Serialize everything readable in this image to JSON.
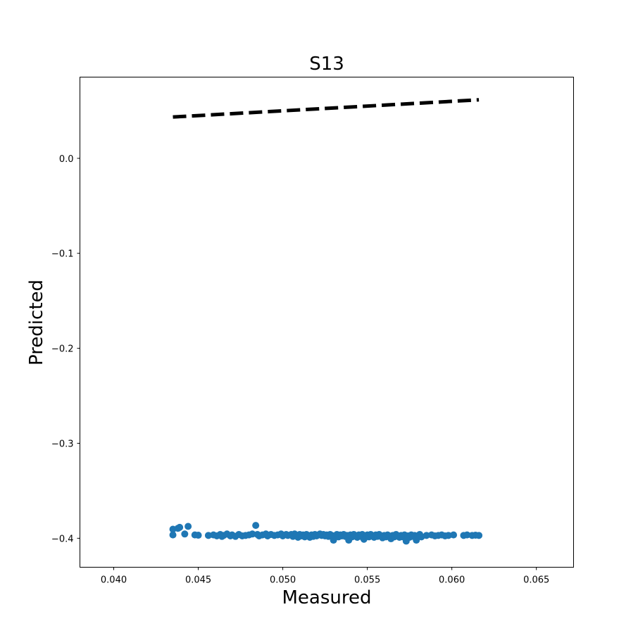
{
  "chart_data": {
    "type": "scatter",
    "title": "S13",
    "xlabel": "Measured",
    "ylabel": "Predicted",
    "xlim": [
      0.038,
      0.0672
    ],
    "ylim": [
      -0.4305,
      0.0855
    ],
    "xticks": [
      0.04,
      0.045,
      0.05,
      0.055,
      0.06,
      0.065
    ],
    "xtick_labels": [
      "0.040",
      "0.045",
      "0.050",
      "0.055",
      "0.060",
      "0.065"
    ],
    "yticks": [
      0.0,
      -0.1,
      -0.2,
      -0.3,
      -0.4
    ],
    "ytick_labels": [
      "0.0",
      "−0.1",
      "−0.2",
      "−0.3",
      "−0.4"
    ],
    "grid": false,
    "colors": {
      "points": "#1f77b4",
      "reference_line": "#000000"
    },
    "reference_line": {
      "x": [
        0.0435,
        0.0616
      ],
      "y": [
        0.0435,
        0.0616
      ],
      "style": "dashed"
    },
    "points": [
      {
        "x": 0.0435,
        "y": -0.3905
      },
      {
        "x": 0.0435,
        "y": -0.3965
      },
      {
        "x": 0.0438,
        "y": -0.3895
      },
      {
        "x": 0.0439,
        "y": -0.3885
      },
      {
        "x": 0.0442,
        "y": -0.3955
      },
      {
        "x": 0.0444,
        "y": -0.3875
      },
      {
        "x": 0.0448,
        "y": -0.3965
      },
      {
        "x": 0.045,
        "y": -0.3968
      },
      {
        "x": 0.0456,
        "y": -0.397
      },
      {
        "x": 0.0459,
        "y": -0.3965
      },
      {
        "x": 0.0461,
        "y": -0.3975
      },
      {
        "x": 0.0463,
        "y": -0.396
      },
      {
        "x": 0.0464,
        "y": -0.398
      },
      {
        "x": 0.0465,
        "y": -0.397
      },
      {
        "x": 0.0467,
        "y": -0.3955
      },
      {
        "x": 0.0469,
        "y": -0.3975
      },
      {
        "x": 0.047,
        "y": -0.3965
      },
      {
        "x": 0.0472,
        "y": -0.398
      },
      {
        "x": 0.0474,
        "y": -0.396
      },
      {
        "x": 0.0476,
        "y": -0.3975
      },
      {
        "x": 0.0478,
        "y": -0.397
      },
      {
        "x": 0.048,
        "y": -0.3965
      },
      {
        "x": 0.0482,
        "y": -0.3955
      },
      {
        "x": 0.0484,
        "y": -0.3865
      },
      {
        "x": 0.0485,
        "y": -0.396
      },
      {
        "x": 0.0486,
        "y": -0.3975
      },
      {
        "x": 0.0488,
        "y": -0.3965
      },
      {
        "x": 0.049,
        "y": -0.3955
      },
      {
        "x": 0.0491,
        "y": -0.3975
      },
      {
        "x": 0.0493,
        "y": -0.396
      },
      {
        "x": 0.0495,
        "y": -0.397
      },
      {
        "x": 0.0497,
        "y": -0.3965
      },
      {
        "x": 0.0499,
        "y": -0.3955
      },
      {
        "x": 0.05,
        "y": -0.3975
      },
      {
        "x": 0.0502,
        "y": -0.396
      },
      {
        "x": 0.0503,
        "y": -0.397
      },
      {
        "x": 0.0505,
        "y": -0.396
      },
      {
        "x": 0.0506,
        "y": -0.398
      },
      {
        "x": 0.0507,
        "y": -0.3955
      },
      {
        "x": 0.0508,
        "y": -0.397
      },
      {
        "x": 0.0509,
        "y": -0.399
      },
      {
        "x": 0.051,
        "y": -0.396
      },
      {
        "x": 0.0511,
        "y": -0.3975
      },
      {
        "x": 0.0512,
        "y": -0.3965
      },
      {
        "x": 0.0513,
        "y": -0.3985
      },
      {
        "x": 0.0514,
        "y": -0.396
      },
      {
        "x": 0.0515,
        "y": -0.3975
      },
      {
        "x": 0.0516,
        "y": -0.399
      },
      {
        "x": 0.0517,
        "y": -0.3965
      },
      {
        "x": 0.0518,
        "y": -0.398
      },
      {
        "x": 0.0519,
        "y": -0.396
      },
      {
        "x": 0.052,
        "y": -0.3975
      },
      {
        "x": 0.0521,
        "y": -0.3965
      },
      {
        "x": 0.0522,
        "y": -0.3955
      },
      {
        "x": 0.0523,
        "y": -0.397
      },
      {
        "x": 0.0524,
        "y": -0.396
      },
      {
        "x": 0.0525,
        "y": -0.3975
      },
      {
        "x": 0.0526,
        "y": -0.3965
      },
      {
        "x": 0.0527,
        "y": -0.398
      },
      {
        "x": 0.0528,
        "y": -0.396
      },
      {
        "x": 0.0529,
        "y": -0.397
      },
      {
        "x": 0.053,
        "y": -0.402
      },
      {
        "x": 0.0531,
        "y": -0.3975
      },
      {
        "x": 0.0532,
        "y": -0.396
      },
      {
        "x": 0.0533,
        "y": -0.3985
      },
      {
        "x": 0.0534,
        "y": -0.3965
      },
      {
        "x": 0.0535,
        "y": -0.3975
      },
      {
        "x": 0.0536,
        "y": -0.396
      },
      {
        "x": 0.0537,
        "y": -0.398
      },
      {
        "x": 0.0538,
        "y": -0.397
      },
      {
        "x": 0.0539,
        "y": -0.402
      },
      {
        "x": 0.054,
        "y": -0.3965
      },
      {
        "x": 0.0541,
        "y": -0.3985
      },
      {
        "x": 0.0542,
        "y": -0.396
      },
      {
        "x": 0.0543,
        "y": -0.3975
      },
      {
        "x": 0.0544,
        "y": -0.399
      },
      {
        "x": 0.0545,
        "y": -0.3965
      },
      {
        "x": 0.0546,
        "y": -0.398
      },
      {
        "x": 0.0547,
        "y": -0.396
      },
      {
        "x": 0.0548,
        "y": -0.401
      },
      {
        "x": 0.0549,
        "y": -0.3975
      },
      {
        "x": 0.055,
        "y": -0.3965
      },
      {
        "x": 0.0551,
        "y": -0.3985
      },
      {
        "x": 0.0552,
        "y": -0.396
      },
      {
        "x": 0.0553,
        "y": -0.3975
      },
      {
        "x": 0.0554,
        "y": -0.399
      },
      {
        "x": 0.0555,
        "y": -0.3965
      },
      {
        "x": 0.0556,
        "y": -0.398
      },
      {
        "x": 0.0557,
        "y": -0.396
      },
      {
        "x": 0.0558,
        "y": -0.3975
      },
      {
        "x": 0.0559,
        "y": -0.3995
      },
      {
        "x": 0.056,
        "y": -0.397
      },
      {
        "x": 0.0561,
        "y": -0.3985
      },
      {
        "x": 0.0562,
        "y": -0.3965
      },
      {
        "x": 0.0563,
        "y": -0.398
      },
      {
        "x": 0.0564,
        "y": -0.4005
      },
      {
        "x": 0.0565,
        "y": -0.397
      },
      {
        "x": 0.0566,
        "y": -0.3985
      },
      {
        "x": 0.0567,
        "y": -0.396
      },
      {
        "x": 0.0568,
        "y": -0.3975
      },
      {
        "x": 0.0569,
        "y": -0.399
      },
      {
        "x": 0.057,
        "y": -0.397
      },
      {
        "x": 0.0571,
        "y": -0.3985
      },
      {
        "x": 0.0572,
        "y": -0.3965
      },
      {
        "x": 0.0573,
        "y": -0.403
      },
      {
        "x": 0.0574,
        "y": -0.3975
      },
      {
        "x": 0.0575,
        "y": -0.399
      },
      {
        "x": 0.0576,
        "y": -0.3965
      },
      {
        "x": 0.0577,
        "y": -0.398
      },
      {
        "x": 0.0578,
        "y": -0.397
      },
      {
        "x": 0.0579,
        "y": -0.402
      },
      {
        "x": 0.058,
        "y": -0.3975
      },
      {
        "x": 0.0581,
        "y": -0.396
      },
      {
        "x": 0.0582,
        "y": -0.3985
      },
      {
        "x": 0.0585,
        "y": -0.397
      },
      {
        "x": 0.0588,
        "y": -0.3965
      },
      {
        "x": 0.059,
        "y": -0.3975
      },
      {
        "x": 0.0592,
        "y": -0.397
      },
      {
        "x": 0.0594,
        "y": -0.3965
      },
      {
        "x": 0.0596,
        "y": -0.3975
      },
      {
        "x": 0.0598,
        "y": -0.397
      },
      {
        "x": 0.0601,
        "y": -0.3965
      },
      {
        "x": 0.0607,
        "y": -0.397
      },
      {
        "x": 0.0609,
        "y": -0.3965
      },
      {
        "x": 0.0612,
        "y": -0.397
      },
      {
        "x": 0.0614,
        "y": -0.3968
      },
      {
        "x": 0.0616,
        "y": -0.397
      }
    ]
  }
}
